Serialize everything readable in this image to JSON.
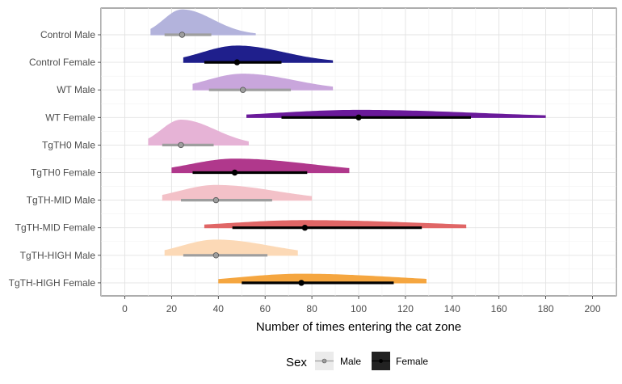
{
  "chart_data": {
    "type": "halfeye",
    "xlabel": "Number of times entering the cat zone",
    "ylabel": "",
    "xlim": [
      -8,
      210
    ],
    "x_ticks": [
      0,
      20,
      40,
      60,
      80,
      100,
      120,
      140,
      160,
      180,
      200
    ],
    "grid": true,
    "legend": {
      "title": "Sex",
      "placement": "bottom",
      "entries": [
        {
          "label": "Male",
          "color": "#9e9e9e"
        },
        {
          "label": "Female",
          "color": "#000000"
        }
      ]
    },
    "categories": [
      "Control Male",
      "Control Female",
      "WT Male",
      "WT Female",
      "TgTH0 Male",
      "TgTH0 Female",
      "TgTH-MID Male",
      "TgTH-MID Female",
      "TgTH-HIGH Male",
      "TgTH-HIGH Female"
    ],
    "series": [
      {
        "group": "Control Male",
        "sex": "Male",
        "color": "#b3b3dc",
        "median": 24.5,
        "interval_66": [
          17,
          37
        ],
        "interval_95": [
          11,
          56
        ],
        "density_height": 1.0
      },
      {
        "group": "Control Female",
        "sex": "Female",
        "color": "#1f1f8c",
        "median": 48,
        "interval_66": [
          34,
          67
        ],
        "interval_95": [
          25,
          89
        ],
        "density_height": 0.66
      },
      {
        "group": "WT Male",
        "sex": "Male",
        "color": "#c9a6dc",
        "median": 50.5,
        "interval_66": [
          36,
          71
        ],
        "interval_95": [
          29,
          89
        ],
        "density_height": 0.64
      },
      {
        "group": "WT Female",
        "sex": "Female",
        "color": "#6a1a9a",
        "median": 100,
        "interval_66": [
          67,
          148
        ],
        "interval_95": [
          52,
          180
        ],
        "density_height": 0.3
      },
      {
        "group": "TgTH0 Male",
        "sex": "Male",
        "color": "#e6b3d6",
        "median": 24,
        "interval_66": [
          16,
          38
        ],
        "interval_95": [
          10,
          53
        ],
        "density_height": 1.0
      },
      {
        "group": "TgTH0 Female",
        "sex": "Female",
        "color": "#b0388c",
        "median": 47,
        "interval_66": [
          29,
          78
        ],
        "interval_95": [
          20,
          96
        ],
        "density_height": 0.55
      },
      {
        "group": "TgTH-MID Male",
        "sex": "Male",
        "color": "#f3c1c8",
        "median": 39,
        "interval_66": [
          24,
          63
        ],
        "interval_95": [
          16,
          80
        ],
        "density_height": 0.6
      },
      {
        "group": "TgTH-MID Female",
        "sex": "Female",
        "color": "#e06666",
        "median": 77,
        "interval_66": [
          46,
          127
        ],
        "interval_95": [
          34,
          146
        ],
        "density_height": 0.3
      },
      {
        "group": "TgTH-HIGH Male",
        "sex": "Male",
        "color": "#fcd9b6",
        "median": 39,
        "interval_66": [
          25,
          61
        ],
        "interval_95": [
          17,
          74
        ],
        "density_height": 0.62
      },
      {
        "group": "TgTH-HIGH Female",
        "sex": "Female",
        "color": "#f5a640",
        "median": 75.5,
        "interval_66": [
          50,
          115
        ],
        "interval_95": [
          40,
          129
        ],
        "density_height": 0.36
      }
    ]
  }
}
